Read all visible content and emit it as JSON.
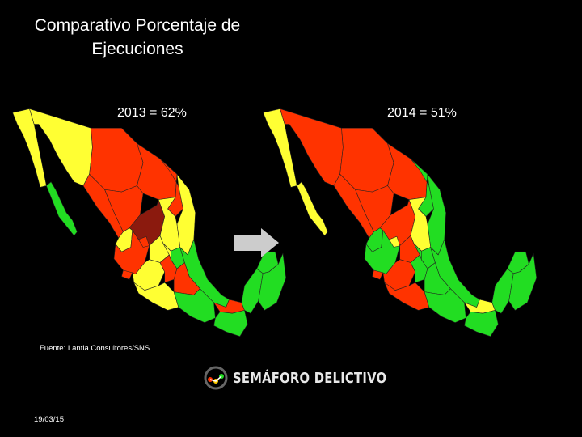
{
  "title_line1": "Comparativo Porcentaje de",
  "title_line2": "Ejecuciones",
  "map_2013": {
    "label": "2013 = 62%"
  },
  "map_2014": {
    "label": "2014 = 51%"
  },
  "source": "Fuente: Lantia Consultores/SNS",
  "logo_text": "SEMÁFORO DELICTIVO",
  "date": "19/03/15",
  "colors": {
    "background": "#000000",
    "yellow": "#ffff33",
    "red": "#ff3300",
    "green": "#22dd22",
    "dark_red": "#8b1a0e",
    "arrow": "#cccccc"
  },
  "state_colors_2013": {
    "baja-california": "yellow",
    "baja-california-sur": "green",
    "sonora": "yellow",
    "chihuahua": "red",
    "coahuila": "red",
    "nuevo-leon": "red",
    "tamaulipas": "yellow",
    "sinaloa": "red",
    "durango": "red",
    "zacatecas": "dark_red",
    "san-luis-potosi": "yellow",
    "nayarit": "yellow",
    "jalisco": "red",
    "aguascalientes": "red",
    "guanajuato": "yellow",
    "queretaro": "yellow",
    "hidalgo": "green",
    "colima": "red",
    "michoacan": "yellow",
    "mexico": "red",
    "veracruz": "green",
    "guerrero": "yellow",
    "puebla": "red",
    "oaxaca": "green",
    "tabasco": "red",
    "chiapas": "green",
    "campeche": "green",
    "yucatan": "green",
    "quintana-roo": "green"
  },
  "state_colors_2014": {
    "baja-california": "yellow",
    "baja-california-sur": "yellow",
    "sonora": "red",
    "chihuahua": "red",
    "coahuila": "red",
    "nuevo-leon": "green",
    "tamaulipas": "green",
    "sinaloa": "red",
    "durango": "red",
    "zacatecas": "red",
    "san-luis-potosi": "yellow",
    "nayarit": "green",
    "jalisco": "green",
    "aguascalientes": "yellow",
    "guanajuato": "red",
    "queretaro": "green",
    "hidalgo": "green",
    "colima": "red",
    "michoacan": "red",
    "mexico": "green",
    "veracruz": "green",
    "guerrero": "red",
    "puebla": "green",
    "oaxaca": "green",
    "tabasco": "yellow",
    "chiapas": "green",
    "campeche": "green",
    "yucatan": "green",
    "quintana-roo": "green"
  }
}
